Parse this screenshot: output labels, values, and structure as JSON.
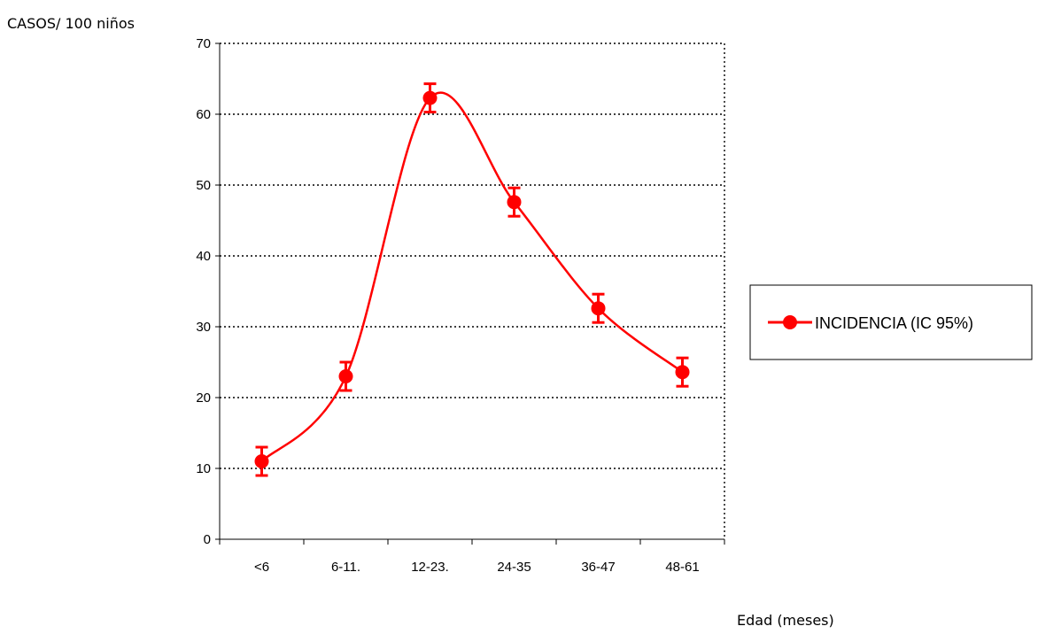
{
  "chart_data": {
    "type": "line",
    "ylabel": "CASOS/ 100 niños",
    "xlabel": "Edad (meses)",
    "categories": [
      "<6",
      "6-11.",
      "12-23.",
      "24-35",
      "36-47",
      "48-61"
    ],
    "ylim": [
      0,
      70
    ],
    "yticks": [
      0,
      10,
      20,
      30,
      40,
      50,
      60,
      70
    ],
    "grid": true,
    "legend_position": "right",
    "series": [
      {
        "name": "INCIDENCIA (IC 95%)",
        "color": "#ff0000",
        "values": [
          11,
          23,
          62.3,
          47.6,
          32.6,
          23.6
        ],
        "error_low": [
          9,
          21,
          60.3,
          45.6,
          30.6,
          21.6
        ],
        "error_high": [
          13,
          25,
          64.3,
          49.6,
          34.6,
          25.6
        ]
      }
    ]
  }
}
